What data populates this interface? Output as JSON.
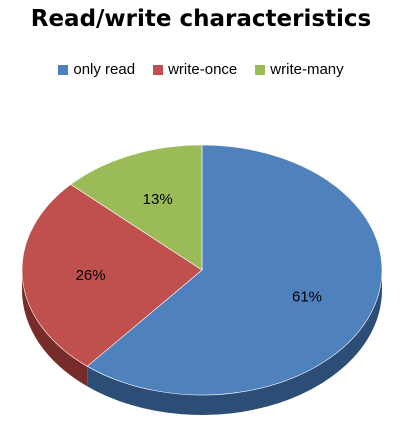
{
  "chart_data": {
    "type": "pie",
    "title": "Read/write characteristics",
    "legend_position": "top",
    "slices": [
      {
        "label": "only read",
        "value": 61,
        "display": "61%",
        "color": "#4F81BD",
        "side": "#2C4D75"
      },
      {
        "label": "write-once",
        "value": 26,
        "display": "26%",
        "color": "#C0504D",
        "side": "#772C2A"
      },
      {
        "label": "write-many",
        "value": 13,
        "display": "13%",
        "color": "#9BBB59",
        "side": "#5F7530"
      }
    ]
  }
}
